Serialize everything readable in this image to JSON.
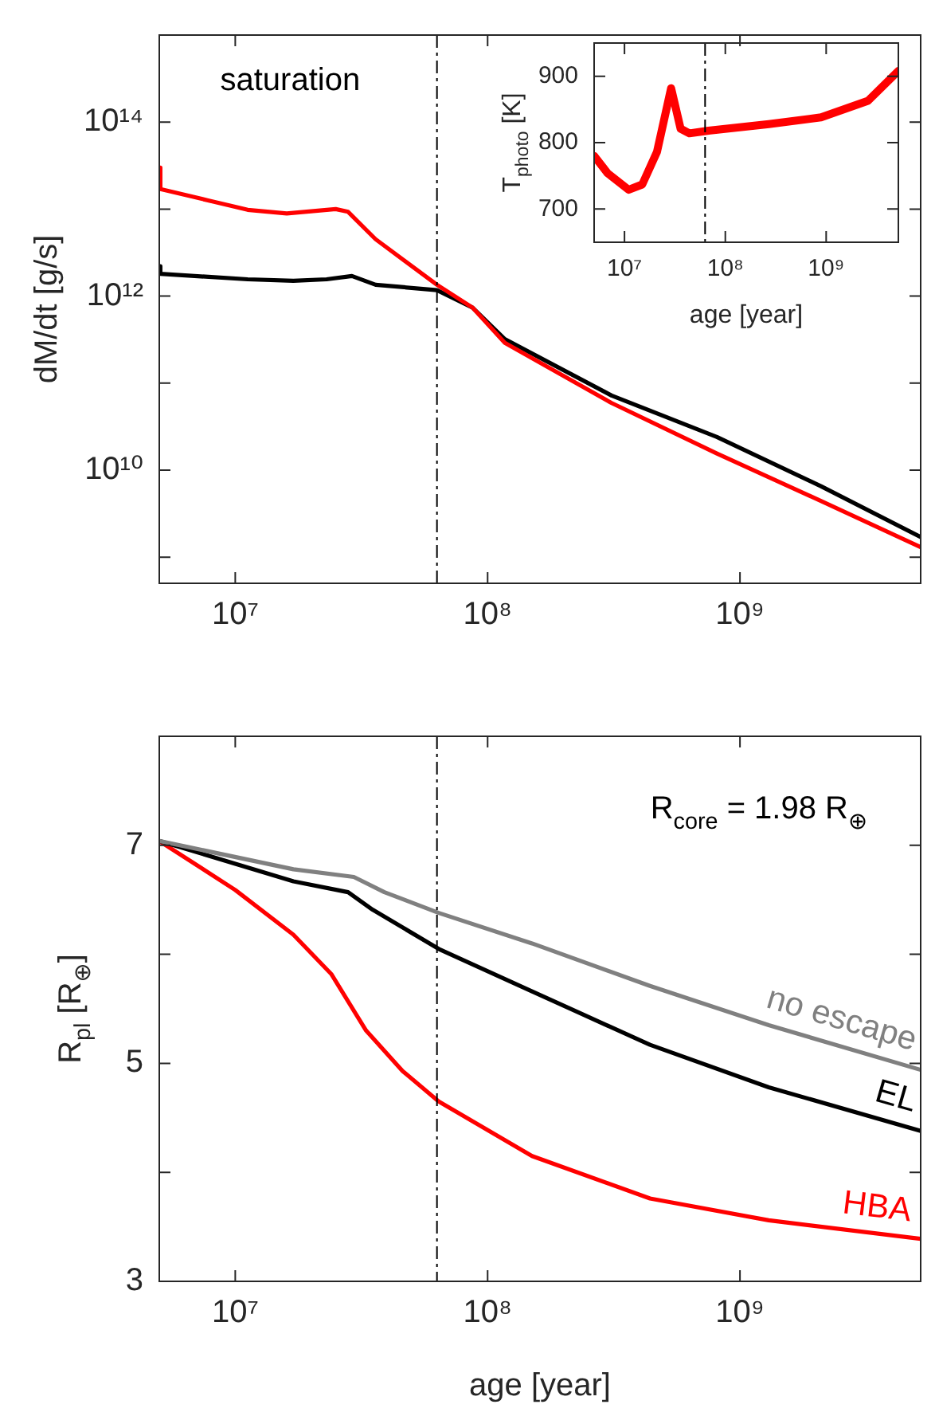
{
  "chart_data": [
    {
      "type": "line",
      "annotations": [
        "saturation"
      ],
      "ylabel": "dM/dt [g/s]",
      "log": "xy",
      "xlim": [
        5000000.0,
        5200000000.0
      ],
      "xticks": [
        {
          "value": 10000000.0,
          "label": "10⁷"
        },
        {
          "value": 100000000.0,
          "label": "10⁸"
        },
        {
          "value": 1000000000.0,
          "label": "10⁹"
        }
      ],
      "ylim": [
        500000000.0,
        1000000000000000.0
      ],
      "yticks": [
        {
          "value": 1000000000.0,
          "label": null
        },
        {
          "value": 10000000000.0,
          "label": "10¹⁰"
        },
        {
          "value": 100000000000.0,
          "label": null
        },
        {
          "value": 1000000000000.0,
          "label": "10¹²"
        },
        {
          "value": 10000000000000.0,
          "label": null
        },
        {
          "value": 100000000000000.0,
          "label": "10¹⁴"
        }
      ],
      "ref_lines": [
        {
          "axis": "x",
          "value": 63000000.0,
          "line_style": "dashdot",
          "color": "#000000"
        }
      ],
      "series": [
        {
          "color": "#ff0000",
          "x": [
            5000000.0,
            5050000.0,
            7800000.0,
            11200000.0,
            16000000.0,
            25000000.0,
            28000000.0,
            36000000.0,
            63000000.0,
            87000000.0,
            117000000.0,
            310000000.0,
            810000000.0,
            2100000000.0,
            5200000000.0
          ],
          "values": [
            30000000000000.0,
            17000000000000.0,
            12600000000000.0,
            9800000000000.0,
            8900000000000.0,
            10000000000000.0,
            9300000000000.0,
            4500000000000.0,
            1350000000000.0,
            740000000000.0,
            290000000000.0,
            59000000000.0,
            15500000000.0,
            4400000000.0,
            1300000000.0
          ]
        },
        {
          "color": "#000000",
          "x": [
            5000000.0,
            5050000.0,
            11200000.0,
            17000000.0,
            23000000.0,
            29000000.0,
            36000000.0,
            63000000.0,
            87000000.0,
            117000000.0,
            310000000.0,
            810000000.0,
            2100000000.0,
            5200000000.0
          ],
          "values": [
            2200000000000.0,
            1800000000000.0,
            1560000000000.0,
            1500000000000.0,
            1560000000000.0,
            1700000000000.0,
            1350000000000.0,
            1170000000000.0,
            740000000000.0,
            320000000000.0,
            72000000000.0,
            24000000000.0,
            6500000000.0,
            1700000000.0
          ]
        }
      ]
    },
    {
      "type": "line",
      "xlabel": "age [year]",
      "ylabel": "T$_{photo}$ [K]",
      "log": "x",
      "xlim": [
        5000000.0,
        5200000000.0
      ],
      "xticks": [
        {
          "value": 10000000.0,
          "label": "10⁷"
        },
        {
          "value": 100000000.0,
          "label": "10⁸"
        },
        {
          "value": 1000000000.0,
          "label": "10⁹"
        }
      ],
      "ylim": [
        650,
        950
      ],
      "yticks": [
        700,
        800,
        900
      ],
      "ref_lines": [
        {
          "axis": "x",
          "value": 63000000.0,
          "line_style": "dashdot",
          "color": "#000000"
        }
      ],
      "series": [
        {
          "color": "#ff0000",
          "x": [
            5000000.0,
            6800000.0,
            11000000.0,
            15000000.0,
            21000000.0,
            29000000.0,
            36000000.0,
            44000000.0,
            68000000.0,
            270000000.0,
            890000000.0,
            2600000000.0,
            5200000000.0
          ],
          "values": [
            780,
            754,
            729,
            737,
            786,
            882,
            821,
            814,
            818,
            828,
            838,
            863,
            908
          ]
        }
      ]
    },
    {
      "type": "line",
      "xlabel": "age [year]",
      "ylabel": "R$_{pl}$ [R$_{⊕}$]",
      "annotations": [
        "R$_{core}$ = 1.98 R$_{⊕}$"
      ],
      "log": "x",
      "xlim": [
        5000000.0,
        5200000000.0
      ],
      "xticks": [
        {
          "value": 10000000.0,
          "label": "10⁷"
        },
        {
          "value": 100000000.0,
          "label": "10⁸"
        },
        {
          "value": 1000000000.0,
          "label": "10⁹"
        }
      ],
      "ylim": [
        3,
        8
      ],
      "yticks": [
        3,
        {
          "value": 4,
          "label": null
        },
        5,
        {
          "value": 6,
          "label": null
        },
        7
      ],
      "ref_lines": [
        {
          "axis": "x",
          "value": 63000000.0,
          "line_style": "dashdot",
          "color": "#000000"
        }
      ],
      "series": [
        {
          "name": "no escape",
          "color": "#808080",
          "x": [
            5000000.0,
            17000000.0,
            29500000.0,
            39000000.0,
            64000000.0,
            150000000.0,
            440000000.0,
            1300000000.0,
            5200000000.0
          ],
          "values": [
            7.04,
            6.78,
            6.71,
            6.57,
            6.38,
            6.1,
            5.71,
            5.35,
            4.94
          ]
        },
        {
          "name": "EL",
          "color": "#000000",
          "x": [
            5000000.0,
            17000000.0,
            28000000.0,
            35000000.0,
            64000000.0,
            150000000.0,
            440000000.0,
            1300000000.0,
            5200000000.0
          ],
          "values": [
            7.04,
            6.67,
            6.57,
            6.41,
            6.05,
            5.66,
            5.17,
            4.78,
            4.38
          ]
        },
        {
          "name": "HBA",
          "color": "#ff0000",
          "x": [
            5000000.0,
            10000000.0,
            17000000.0,
            24000000.0,
            33000000.0,
            46000000.0,
            64000000.0,
            150000000.0,
            440000000.0,
            1300000000.0,
            5200000000.0
          ],
          "values": [
            7.04,
            6.59,
            6.18,
            5.82,
            5.3,
            4.93,
            4.65,
            4.15,
            3.76,
            3.56,
            3.39
          ]
        }
      ]
    }
  ]
}
